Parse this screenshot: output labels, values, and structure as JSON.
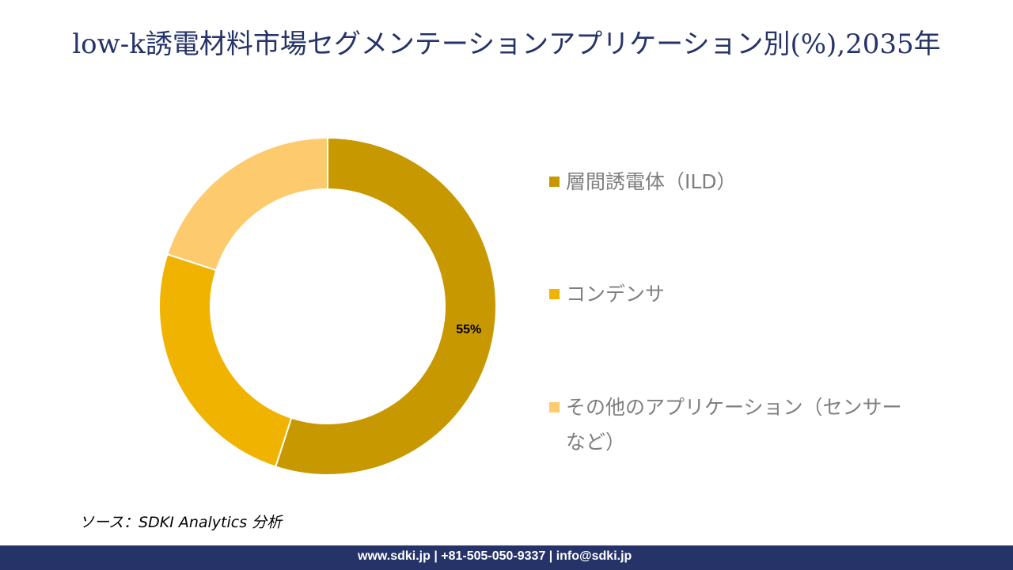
{
  "chart_data": {
    "type": "pie",
    "variant": "donut",
    "title": "low-k誘電材料市場セグメンテーションアプリケーション別(%),2035年",
    "categories": [
      "層間誘電体（ILD）",
      "コンデンサ",
      "その他のアプリケーション（センサーなど）"
    ],
    "values": [
      55,
      25,
      20
    ],
    "data_labels": [
      "55%",
      "",
      ""
    ],
    "colors": [
      "#C89800",
      "#F0B400",
      "#FDCB6E"
    ],
    "legend_position": "right"
  },
  "legend": {
    "items": [
      {
        "label_line1": "層間誘電体（ILD）",
        "label_line2": ""
      },
      {
        "label_line1": "コンデンサ",
        "label_line2": ""
      },
      {
        "label_line1": "その他のアプリケーション（センサー",
        "label_line2": "など）"
      }
    ]
  },
  "source": "ソース：SDKI Analytics 分析",
  "footer": "www.sdki.jp | +81-505-050-9337 | info@sdki.jp"
}
